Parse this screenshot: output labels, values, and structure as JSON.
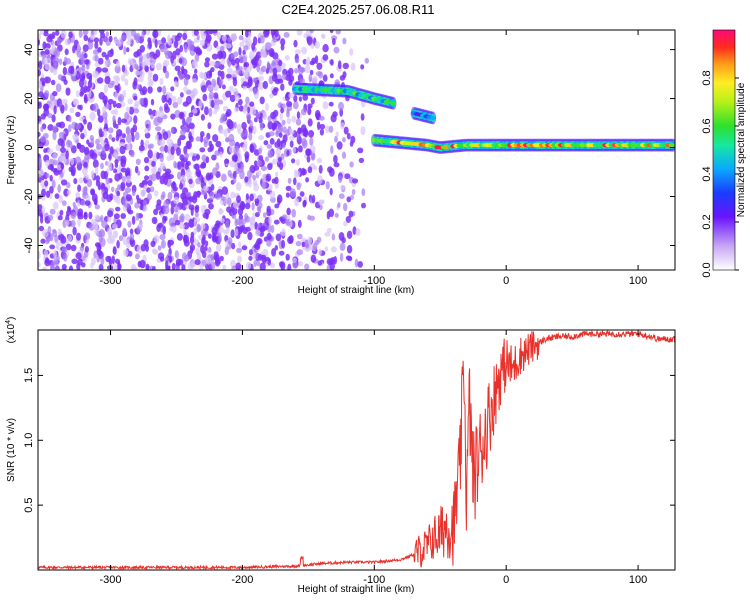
{
  "title": "C2E4.2025.257.06.08.R11",
  "chart_data": [
    {
      "type": "heatmap",
      "xlabel": "Height of straight line (km)",
      "ylabel": "Frequency (Hz)",
      "xlim": [
        -355,
        128
      ],
      "ylim": [
        -50,
        48
      ],
      "x_ticks": [
        -300,
        -200,
        -100,
        0,
        100
      ],
      "y_ticks": [
        -40,
        -20,
        0,
        20,
        40
      ],
      "colorbar": {
        "label": "Normalized spectral amplitude",
        "range": [
          0.0,
          1.0
        ],
        "ticks": [
          0.0,
          0.2,
          0.4,
          0.6,
          0.8
        ],
        "tick_labels": [
          "0.0",
          "0.2",
          "0.4",
          "0.6",
          "0.8"
        ]
      },
      "features": [
        {
          "kind": "noise_field",
          "x_range": [
            -355,
            -105
          ],
          "freq_range": [
            -50,
            48
          ],
          "amplitude": 0.2
        },
        {
          "kind": "line",
          "x": [
            -160,
            -120,
            -100,
            -85
          ],
          "freq": [
            24,
            23,
            20,
            18
          ],
          "amplitude": 0.5
        },
        {
          "kind": "line",
          "x": [
            -100,
            -60,
            -50,
            -30,
            0,
            50,
            128
          ],
          "freq": [
            3,
            1,
            0,
            1,
            1,
            1,
            1
          ],
          "amplitude": 0.75
        },
        {
          "kind": "segment",
          "x": [
            -70,
            -55
          ],
          "freq": [
            14,
            12
          ],
          "amplitude": 0.35
        }
      ]
    },
    {
      "type": "line",
      "xlabel": "Height of straight line (km)",
      "ylabel": "SNR (10 * v/v)",
      "y_scale_label": "(x10",
      "y_scale_exponent": "4",
      "y_scale_suffix": ")",
      "xlim": [
        -355,
        128
      ],
      "ylim": [
        0,
        1.85
      ],
      "x_ticks": [
        -300,
        -200,
        -100,
        0,
        100
      ],
      "y_ticks": [
        0.5,
        1.0,
        1.5
      ],
      "y_tick_labels": [
        "0.5",
        "1.0",
        "1.5"
      ],
      "color": "#e8312b",
      "series": [
        {
          "x": [
            -355,
            -300,
            -250,
            -200,
            -160,
            -150,
            -140,
            -120,
            -100,
            -80,
            -70,
            -60,
            -55,
            -50,
            -45,
            -40,
            -35,
            -32,
            -30,
            -28,
            -25,
            -20,
            -15,
            -10,
            -5,
            0,
            5,
            10,
            20,
            30,
            40,
            50,
            60,
            80,
            100,
            110,
            115,
            120,
            128
          ],
          "y": [
            0.02,
            0.02,
            0.02,
            0.02,
            0.03,
            0.04,
            0.05,
            0.06,
            0.06,
            0.08,
            0.12,
            0.18,
            0.25,
            0.28,
            0.35,
            0.32,
            0.8,
            1.6,
            0.5,
            1.3,
            0.7,
            0.9,
            1.1,
            1.3,
            1.5,
            1.6,
            1.55,
            1.65,
            1.72,
            1.78,
            1.8,
            1.8,
            1.82,
            1.82,
            1.82,
            1.8,
            1.78,
            1.78,
            1.78
          ]
        }
      ]
    }
  ],
  "colors": {
    "line": "#e8312b",
    "noise": "#8a35f0",
    "background": "#ffffff"
  }
}
